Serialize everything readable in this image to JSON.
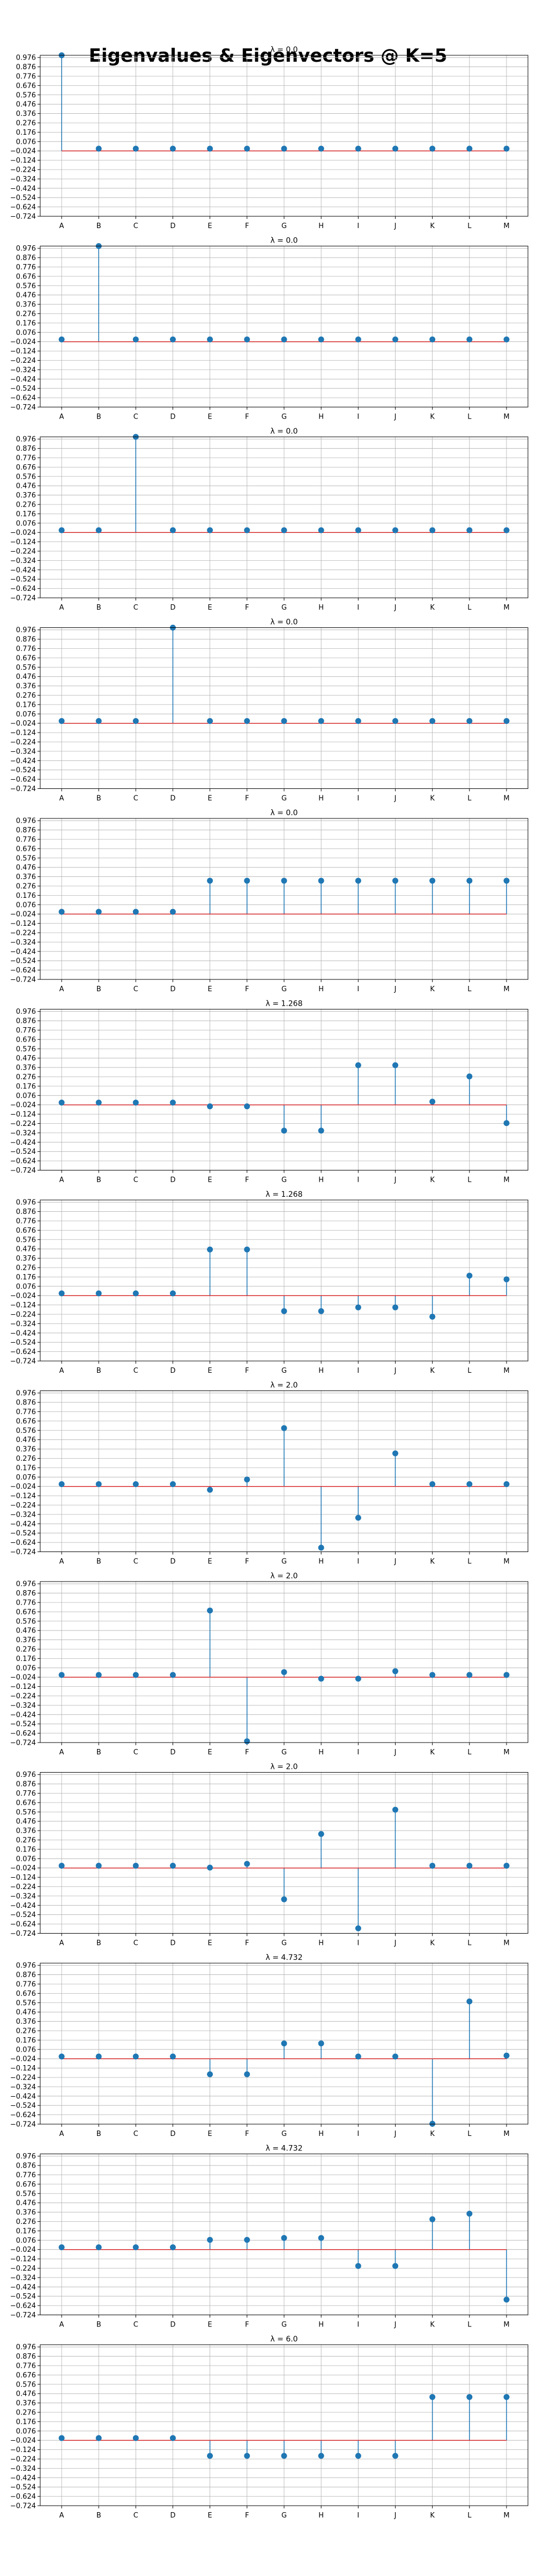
{
  "figure": {
    "title": "Eigenvalues & Eigenvectors @ K=5"
  },
  "chart_data": {
    "type": "stem",
    "categories": [
      "A",
      "B",
      "C",
      "D",
      "E",
      "F",
      "G",
      "H",
      "I",
      "J",
      "K",
      "L",
      "M"
    ],
    "ylim": [
      -0.724,
      1.0
    ],
    "yticks": [
      "0.976",
      "0.876",
      "0.776",
      "0.676",
      "0.576",
      "0.476",
      "0.376",
      "0.276",
      "0.176",
      "0.076",
      "−0.024",
      "−0.124",
      "−0.224",
      "−0.324",
      "−0.424",
      "−0.524",
      "−0.624",
      "−0.724"
    ],
    "baseline": -0.024,
    "grid": true,
    "colors": {
      "stem": "#1f77b4",
      "baseline": "#d62728"
    },
    "panels": [
      {
        "title": "λ = 0.0",
        "values": [
          1.0,
          0,
          0,
          0,
          0,
          0,
          0,
          0,
          0,
          0,
          0,
          0,
          0
        ]
      },
      {
        "title": "λ = 0.0",
        "values": [
          0,
          1.0,
          0,
          0,
          0,
          0,
          0,
          0,
          0,
          0,
          0,
          0,
          0
        ]
      },
      {
        "title": "λ = 0.0",
        "values": [
          0,
          0,
          1.0,
          0,
          0,
          0,
          0,
          0,
          0,
          0,
          0,
          0,
          0
        ]
      },
      {
        "title": "λ = 0.0",
        "values": [
          0,
          0,
          0,
          1.0,
          0,
          0,
          0,
          0,
          0,
          0,
          0,
          0,
          0
        ]
      },
      {
        "title": "λ = 0.0",
        "values": [
          0,
          0,
          0,
          0,
          0.333,
          0.333,
          0.333,
          0.333,
          0.333,
          0.333,
          0.333,
          0.333,
          0.333
        ]
      },
      {
        "title": "λ = 1.268",
        "values": [
          0,
          0,
          0,
          0,
          -0.04,
          -0.04,
          -0.3,
          -0.3,
          0.4,
          0.4,
          0.01,
          0.28,
          -0.22
        ]
      },
      {
        "title": "λ = 1.268",
        "values": [
          0,
          0,
          0,
          0,
          0.47,
          0.47,
          -0.19,
          -0.19,
          -0.15,
          -0.15,
          -0.25,
          0.19,
          0.15
        ]
      },
      {
        "title": "λ = 2.0",
        "values": [
          0,
          0,
          0,
          0,
          -0.06,
          0.05,
          0.6,
          -0.68,
          -0.36,
          0.33,
          0,
          0,
          0
        ]
      },
      {
        "title": "λ = 2.0",
        "values": [
          0,
          0,
          0,
          0,
          0.69,
          -0.71,
          0.03,
          -0.04,
          -0.04,
          0.04,
          0,
          0,
          0
        ]
      },
      {
        "title": "λ = 2.0",
        "values": [
          0,
          0,
          0,
          0,
          -0.02,
          0.02,
          -0.36,
          0.34,
          -0.67,
          0.6,
          0,
          0,
          0
        ]
      },
      {
        "title": "λ = 4.732",
        "values": [
          0,
          0,
          0,
          0,
          -0.19,
          -0.19,
          0.14,
          0.14,
          0,
          0,
          -0.72,
          0.59,
          0.01
        ]
      },
      {
        "title": "λ = 4.732",
        "values": [
          0,
          0,
          0,
          0,
          0.08,
          0.08,
          0.1,
          0.1,
          -0.2,
          -0.2,
          0.3,
          0.36,
          -0.56
        ]
      },
      {
        "title": "λ = 6.0",
        "values": [
          0,
          0,
          0,
          0,
          -0.19,
          -0.19,
          -0.19,
          -0.19,
          -0.19,
          -0.19,
          0.44,
          0.44,
          0.44
        ]
      }
    ]
  }
}
